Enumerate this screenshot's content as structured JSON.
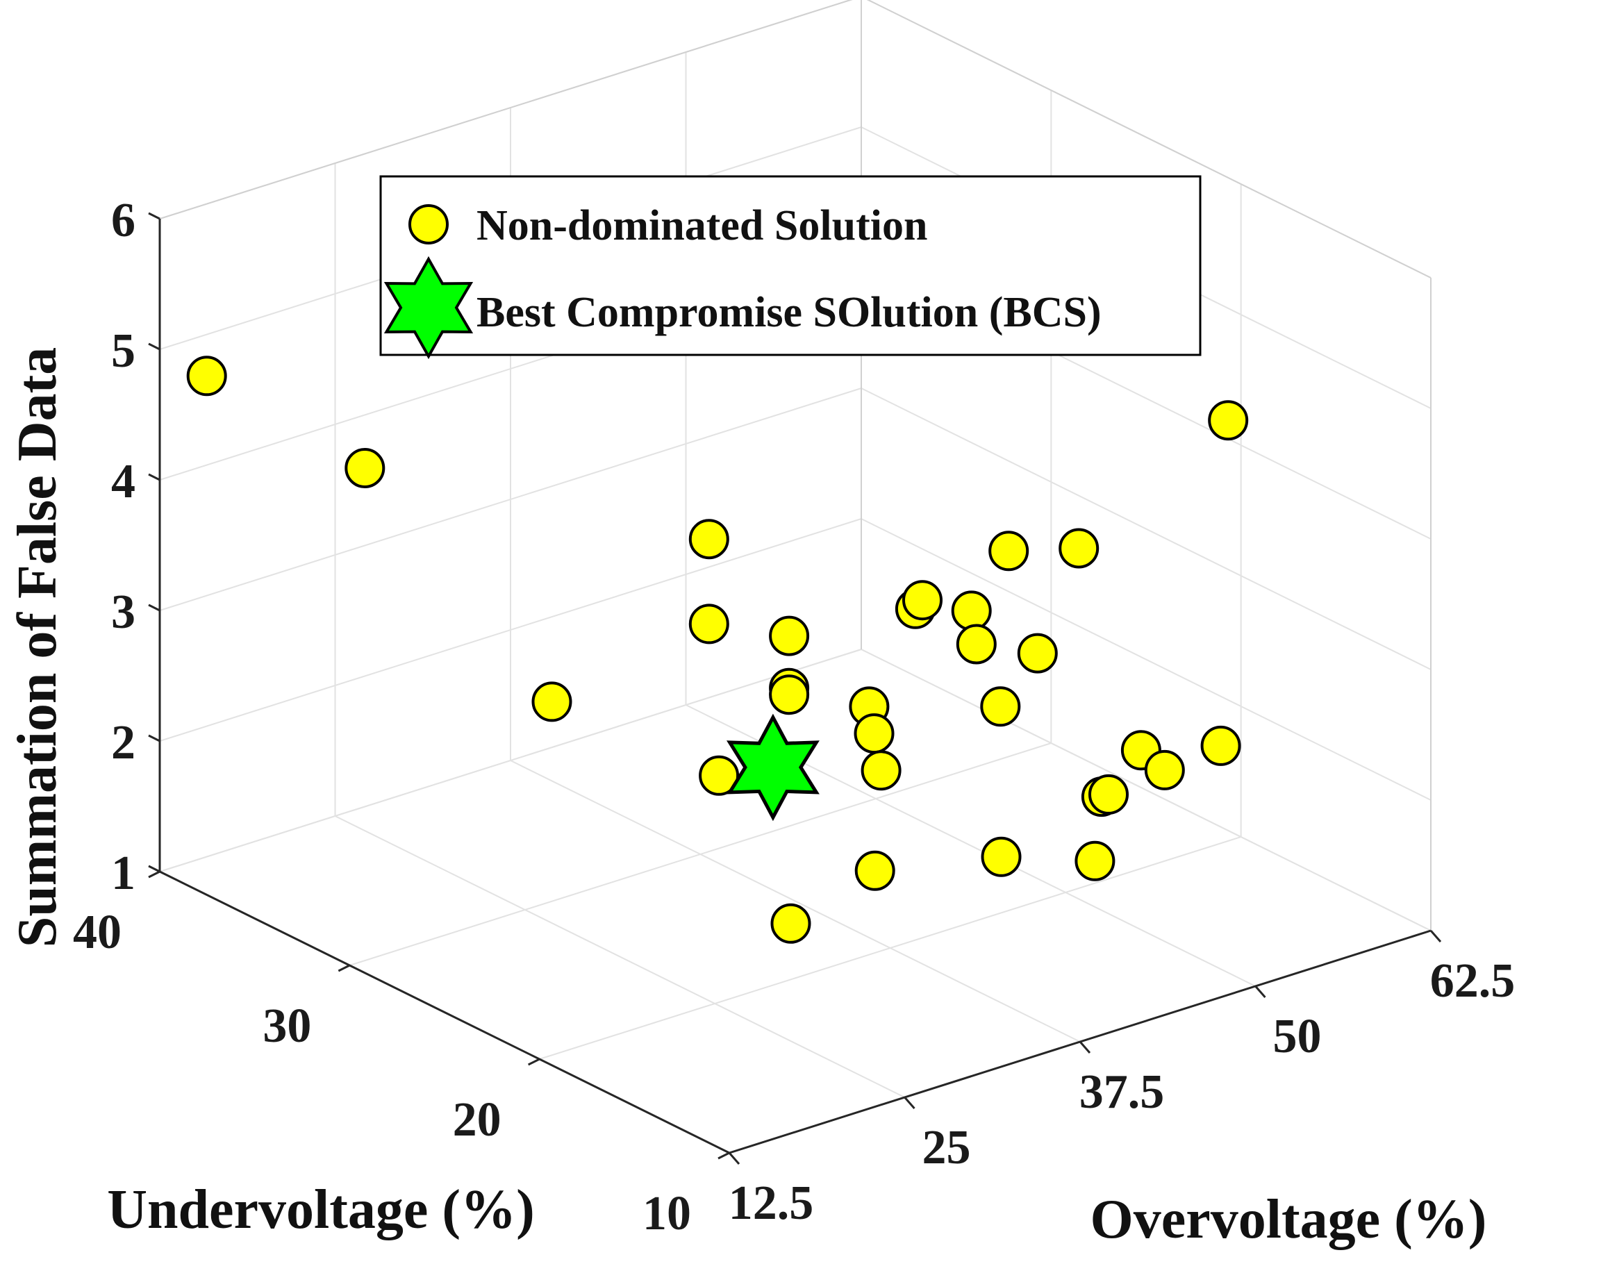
{
  "chart_data": {
    "type": "scatter3d",
    "xlabel": "Overvoltage (%)",
    "ylabel": "Undervoltage (%)",
    "zlabel": "Summation of False Data",
    "xlim": [
      12.5,
      62.5
    ],
    "ylim": [
      10,
      40
    ],
    "zlim": [
      1,
      6
    ],
    "xticks": [
      "12.5",
      "25",
      "37.5",
      "50",
      "62.5"
    ],
    "yticks": [
      "10",
      "20",
      "30",
      "40"
    ],
    "zticks": [
      "1",
      "2",
      "3",
      "4",
      "5",
      "6"
    ],
    "grid": true,
    "legend": {
      "placement": "top-center",
      "entries": [
        "Non-dominated Solution",
        "Best Compromise SOlution (BCS)"
      ]
    },
    "series": [
      {
        "name": "Non-dominated Solution",
        "marker": "circle",
        "color": "#FFFF00",
        "edgecolor": "#000000",
        "points": [
          {
            "x": 14.5,
            "y": 39,
            "z": 4.8
          },
          {
            "x": 19,
            "y": 34,
            "z": 4.3
          },
          {
            "x": 21.5,
            "y": 26,
            "z": 3.0
          },
          {
            "x": 30,
            "y": 24,
            "z": 4.1
          },
          {
            "x": 30,
            "y": 24,
            "z": 3.45
          },
          {
            "x": 33,
            "y": 22,
            "z": 3.4
          },
          {
            "x": 33,
            "y": 22,
            "z": 3.0
          },
          {
            "x": 33,
            "y": 22,
            "z": 2.95
          },
          {
            "x": 28,
            "y": 22,
            "z": 2.5
          },
          {
            "x": 25,
            "y": 16,
            "z": 1.9
          },
          {
            "x": 36,
            "y": 20,
            "z": 2.9
          },
          {
            "x": 35,
            "y": 19,
            "z": 2.8
          },
          {
            "x": 35.5,
            "y": 19,
            "z": 2.5
          },
          {
            "x": 31,
            "y": 16,
            "z": 2.1
          },
          {
            "x": 42,
            "y": 22,
            "z": 3.3
          },
          {
            "x": 42.5,
            "y": 22,
            "z": 3.35
          },
          {
            "x": 46,
            "y": 22,
            "z": 3.15
          },
          {
            "x": 45,
            "y": 21,
            "z": 3.0
          },
          {
            "x": 50,
            "y": 23,
            "z": 3.4
          },
          {
            "x": 44,
            "y": 19,
            "z": 2.7
          },
          {
            "x": 48,
            "y": 20,
            "z": 2.9
          },
          {
            "x": 55,
            "y": 23,
            "z": 3.25
          },
          {
            "x": 40,
            "y": 16,
            "z": 1.9
          },
          {
            "x": 67,
            "y": 24,
            "z": 3.75
          },
          {
            "x": 48.5,
            "y": 17,
            "z": 2.0
          },
          {
            "x": 49,
            "y": 17,
            "z": 2.0
          },
          {
            "x": 52,
            "y": 17.5,
            "z": 2.2
          },
          {
            "x": 46,
            "y": 15.5,
            "z": 1.7
          },
          {
            "x": 53,
            "y": 17,
            "z": 2.05
          },
          {
            "x": 57,
            "y": 17,
            "z": 2.1
          }
        ]
      },
      {
        "name": "Best Compromise SOlution (BCS)",
        "marker": "hexagram",
        "color": "#00FF00",
        "edgecolor": "#000000",
        "points": [
          {
            "x": 30.5,
            "y": 21,
            "z": 2.55
          }
        ]
      }
    ]
  }
}
